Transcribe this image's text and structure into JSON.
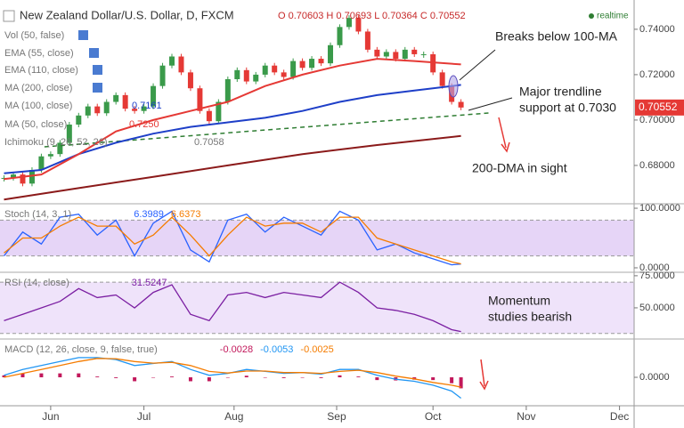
{
  "chart_data": [
    {
      "type": "candlestick",
      "title": "New Zealand Dollar/U.S. Dollar, D, FXCM",
      "ohlc": "O 0.70603 H 0.70693 L 0.70364 C 0.70552",
      "status": "realtime",
      "indicators": [
        "Vol (50, false)",
        "EMA (55, close)",
        "EMA (110, close)",
        "Ichimoku (9, 26, 52, 26)"
      ],
      "indicator_readouts": [
        "0.7161",
        "0.7250",
        "0.7058"
      ],
      "annotations": [
        "Breaks below 100-MA",
        "Major trendline",
        "support at 0.7030",
        "200-DMA in sight"
      ],
      "xlim": [
        -16.3,
        187.7
      ],
      "ylim": [
        0.6635,
        0.7529
      ],
      "yticks": [
        {
          "value": 0.74,
          "label": "0.74000"
        },
        {
          "value": 0.72,
          "label": "0.72000"
        },
        {
          "value": 0.7,
          "label": "0.70000"
        },
        {
          "value": 0.68,
          "label": "0.68000"
        }
      ],
      "candles": {
        "up_color": "#3a9a4a",
        "down_color": "#e53935",
        "last_color": "#e53935",
        "x": [
          -15,
          -12,
          -9,
          -6,
          -3,
          0,
          3,
          6,
          9,
          12,
          15,
          18,
          21,
          24,
          27,
          30,
          33,
          36,
          39,
          42,
          45,
          48,
          51,
          54,
          57,
          60,
          63,
          66,
          69,
          72,
          75,
          78,
          81,
          84,
          87,
          90,
          93,
          96,
          99,
          102,
          105,
          108,
          111,
          114,
          117,
          120,
          123,
          126,
          129,
          132
        ],
        "values": [
          0.6745,
          0.676,
          0.672,
          0.678,
          0.684,
          0.685,
          0.69,
          0.698,
          0.702,
          0.706,
          0.703,
          0.708,
          0.711,
          0.705,
          0.704,
          0.706,
          0.715,
          0.724,
          0.728,
          0.721,
          0.714,
          0.704,
          0.6995,
          0.708,
          0.718,
          0.722,
          0.717,
          0.72,
          0.724,
          0.721,
          0.719,
          0.726,
          0.723,
          0.727,
          0.725,
          0.733,
          0.741,
          0.745,
          0.739,
          0.731,
          0.728,
          0.73,
          0.727,
          0.731,
          0.729,
          0.729,
          0.721,
          0.715,
          0.708,
          0.70552
        ]
      },
      "trendline": {
        "color": "#2e7d32",
        "x": [
          -2,
          141
        ],
        "values": [
          0.6882,
          0.7031
        ]
      },
      "series": [
        {
          "name": "MA (200, close)",
          "color": "#8b1a1a",
          "x": [
            -15,
            9,
            33,
            57,
            81,
            105,
            132
          ],
          "values": [
            0.665,
            0.67,
            0.675,
            0.68,
            0.685,
            0.689,
            0.693
          ]
        },
        {
          "name": "MA (100, close)",
          "color": "#1e3fc8",
          "x": [
            -15,
            -3,
            9,
            21,
            33,
            45,
            57,
            69,
            81,
            93,
            105,
            117,
            132
          ],
          "values": [
            0.6765,
            0.678,
            0.685,
            0.69,
            0.694,
            0.697,
            0.699,
            0.701,
            0.704,
            0.708,
            0.711,
            0.713,
            0.7155
          ]
        },
        {
          "name": "MA (50, close)",
          "color": "#e53935",
          "x": [
            -15,
            -3,
            9,
            21,
            33,
            45,
            57,
            69,
            81,
            93,
            105,
            117,
            132
          ],
          "values": [
            0.674,
            0.676,
            0.685,
            0.695,
            0.7,
            0.704,
            0.708,
            0.715,
            0.72,
            0.724,
            0.727,
            0.726,
            0.7245
          ]
        }
      ]
    },
    {
      "type": "line",
      "title": "Stoch (14, 3, 1)",
      "xlim": [
        -16.3,
        187.7
      ],
      "ylim": [
        -6,
        106
      ],
      "yticks": [
        {
          "value": 100,
          "label": "100.0000"
        },
        {
          "value": 0,
          "label": "0.0000"
        }
      ],
      "band": [
        20,
        80
      ],
      "band_color": "#e6d5f7",
      "series": [
        {
          "color": "#2962ff",
          "style": "line",
          "x": [
            -15,
            -9,
            -3,
            3,
            9,
            15,
            21,
            27,
            33,
            39,
            45,
            51,
            57,
            63,
            69,
            75,
            81,
            87,
            93,
            99,
            105,
            111,
            117,
            123,
            129,
            132
          ],
          "values": [
            20,
            60,
            40,
            85,
            90,
            55,
            80,
            20,
            75,
            95,
            30,
            10,
            80,
            90,
            60,
            85,
            70,
            55,
            95,
            80,
            30,
            40,
            25,
            15,
            5,
            6.3989
          ]
        },
        {
          "color": "#f57c00",
          "style": "line",
          "x": [
            -15,
            -9,
            -3,
            3,
            9,
            15,
            21,
            27,
            33,
            39,
            45,
            51,
            57,
            63,
            69,
            75,
            81,
            87,
            93,
            99,
            105,
            111,
            117,
            123,
            129,
            132
          ],
          "values": [
            25,
            50,
            50,
            70,
            85,
            70,
            70,
            40,
            55,
            85,
            55,
            20,
            55,
            85,
            70,
            75,
            75,
            60,
            85,
            85,
            50,
            40,
            30,
            20,
            10,
            6.6373
          ]
        }
      ]
    },
    {
      "type": "line",
      "title": "RSI (14, close)",
      "xlim": [
        -16.3,
        187.7
      ],
      "ylim": [
        26.4,
        77
      ],
      "yticks": [
        {
          "value": 75,
          "label": "75.0000"
        },
        {
          "value": 50,
          "label": "50.0000"
        }
      ],
      "band": [
        30,
        70
      ],
      "band_color": "#efe3fa",
      "annotations": [
        "Momentum",
        "studies bearish"
      ],
      "series": [
        {
          "color": "#7b1fa2",
          "style": "line",
          "x": [
            -15,
            -9,
            -3,
            3,
            9,
            15,
            21,
            27,
            33,
            39,
            45,
            51,
            57,
            63,
            69,
            75,
            81,
            87,
            93,
            99,
            105,
            111,
            117,
            123,
            129,
            132
          ],
          "values": [
            40,
            45,
            50,
            55,
            65,
            58,
            60,
            50,
            62,
            68,
            45,
            40,
            60,
            62,
            58,
            62,
            60,
            58,
            70,
            62,
            50,
            48,
            45,
            40,
            33,
            31.5247
          ]
        }
      ]
    },
    {
      "type": "line",
      "title": "MACD (12, 26, close, 9, false, true)",
      "xlim": [
        -16.3,
        187.7
      ],
      "ylim": [
        -0.007,
        0.0095
      ],
      "yticks": [
        {
          "value": 0,
          "label": "0.0000"
        }
      ],
      "xticks": [
        {
          "value": 0,
          "label": "Jun"
        },
        {
          "value": 30,
          "label": "Jul"
        },
        {
          "value": 59,
          "label": "Aug"
        },
        {
          "value": 92,
          "label": "Sep"
        },
        {
          "value": 123,
          "label": "Oct"
        },
        {
          "value": 153,
          "label": "Nov"
        },
        {
          "value": 183,
          "label": "Dec"
        }
      ],
      "series": [
        {
          "color": "#c2185b",
          "style": "bars",
          "x": [
            -15,
            -9,
            -3,
            3,
            9,
            15,
            21,
            27,
            33,
            39,
            45,
            51,
            57,
            63,
            69,
            75,
            81,
            87,
            93,
            99,
            105,
            111,
            117,
            123,
            129,
            132
          ],
          "values": [
            0.0005,
            0.001,
            0.001,
            0.001,
            0.001,
            0.0002,
            -0.0002,
            -0.001,
            -0.0001,
            0.0002,
            -0.001,
            -0.001,
            -0.0001,
            0.0004,
            -0.0001,
            -0.0002,
            0,
            -0.0002,
            0.0005,
            0.0002,
            -0.0007,
            -0.0008,
            -0.0006,
            -0.0007,
            -0.0015,
            -0.0028
          ]
        },
        {
          "color": "#2196f3",
          "style": "line",
          "x": [
            -15,
            -9,
            -3,
            3,
            9,
            15,
            21,
            27,
            33,
            39,
            45,
            51,
            57,
            63,
            69,
            75,
            81,
            87,
            93,
            99,
            105,
            111,
            117,
            123,
            129,
            132
          ],
          "values": [
            0.0005,
            0.002,
            0.003,
            0.004,
            0.005,
            0.005,
            0.0045,
            0.003,
            0.0035,
            0.004,
            0.002,
            0.0005,
            0.001,
            0.002,
            0.0015,
            0.001,
            0.0012,
            0.0008,
            0.002,
            0.002,
            0.0005,
            -0.0005,
            -0.001,
            -0.002,
            -0.0035,
            -0.0053
          ]
        },
        {
          "color": "#f57c00",
          "style": "line",
          "x": [
            -15,
            -9,
            -3,
            3,
            9,
            15,
            21,
            27,
            33,
            39,
            45,
            51,
            57,
            63,
            69,
            75,
            81,
            87,
            93,
            99,
            105,
            111,
            117,
            123,
            129,
            132
          ],
          "values": [
            0,
            0.001,
            0.002,
            0.003,
            0.004,
            0.0048,
            0.0047,
            0.004,
            0.0036,
            0.0038,
            0.003,
            0.0015,
            0.0011,
            0.0016,
            0.0016,
            0.0012,
            0.0012,
            0.001,
            0.0015,
            0.0018,
            0.0012,
            0.0003,
            -0.0004,
            -0.0013,
            -0.002,
            -0.0025
          ]
        }
      ]
    }
  ]
}
